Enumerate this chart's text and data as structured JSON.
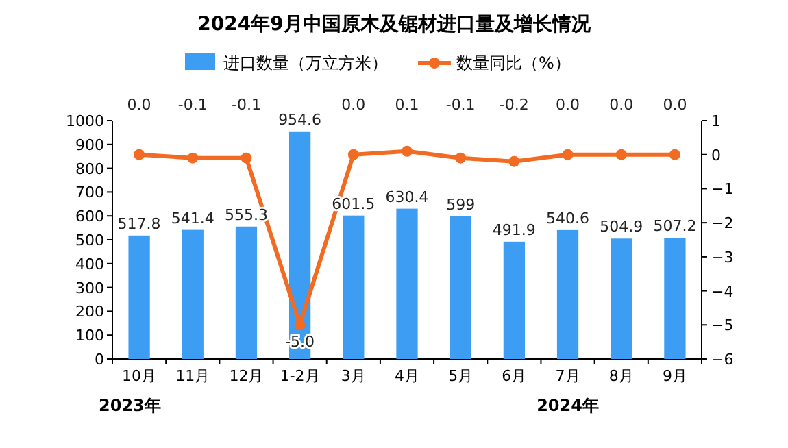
{
  "chart_data": {
    "type": "bar",
    "title": "2024年9月中国原木及锯材进口量及增长情况",
    "categories": [
      "10月",
      "11月",
      "12月",
      "1-2月",
      "3月",
      "4月",
      "5月",
      "6月",
      "7月",
      "8月",
      "9月"
    ],
    "series": [
      {
        "name": "进口数量（万立方米）",
        "color": "#3d9df3",
        "values": [
          517.8,
          541.4,
          555.3,
          954.6,
          601.5,
          630.4,
          599,
          491.9,
          540.6,
          504.9,
          507.2
        ],
        "value_labels": [
          "517.8",
          "541.4",
          "555.3",
          "954.6",
          "601.5",
          "630.4",
          "599",
          "491.9",
          "540.6",
          "504.9",
          "507.2"
        ]
      },
      {
        "name": "数量同比（%）",
        "type": "line",
        "axis": "y2",
        "color": "#f26b22",
        "marker": "circle",
        "values": [
          0.0,
          -0.1,
          -0.1,
          -5.0,
          0.0,
          0.1,
          -0.1,
          -0.2,
          0.0,
          0.0,
          0.0
        ],
        "value_labels": [
          "0.0",
          "-0.1",
          "-0.1",
          "-5.0",
          "0.0",
          "0.1",
          "-0.1",
          "-0.2",
          "0.0",
          "0.0",
          "0.0"
        ]
      }
    ],
    "ylim": [
      0,
      1000
    ],
    "yticks": [
      0,
      100,
      200,
      300,
      400,
      500,
      600,
      700,
      800,
      900,
      1000
    ],
    "y2lim": [
      -6,
      1
    ],
    "y2ticks": [
      -6,
      -5,
      -4,
      -3,
      -2,
      -1,
      0,
      1
    ],
    "grid": false,
    "legend": "top",
    "annotations": [
      "2023年",
      "2024年"
    ]
  }
}
